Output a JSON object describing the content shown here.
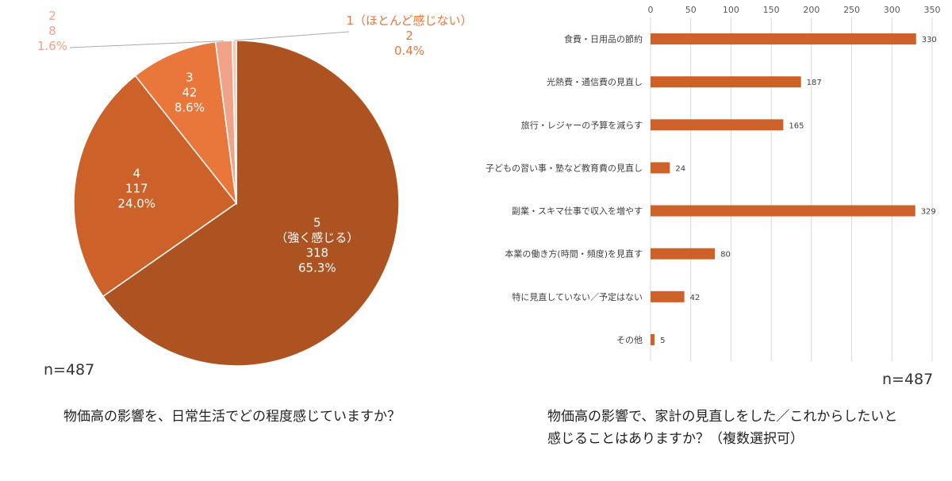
{
  "chart_data": [
    {
      "type": "pie",
      "title": "物価高の影響を、日常生活でどの程度感じていますか？",
      "note": "n=487",
      "slices": [
        {
          "name": "5",
          "sublabel": "（強く感じる）",
          "value": 318,
          "percent": "65.3%",
          "color": "#ad5322"
        },
        {
          "name": "4",
          "sublabel": "",
          "value": 117,
          "percent": "24.0%",
          "color": "#cc6129"
        },
        {
          "name": "3",
          "sublabel": "",
          "value": 42,
          "percent": "8.6%",
          "color": "#e9763a"
        },
        {
          "name": "2",
          "sublabel": "",
          "value": 8,
          "percent": "1.6%",
          "color": "#f1a38a"
        },
        {
          "name": "1（ほとんど感じない）",
          "sublabel": "",
          "value": 2,
          "percent": "0.4%",
          "color": "#f6c9b8"
        }
      ]
    },
    {
      "type": "bar",
      "orientation": "horizontal",
      "title": "物価高の影響で、家計の見直しをした／これからしたいと感じることはありますか？（複数選択可）",
      "title_lines": [
        "物価高の影響で、家計の見直しをした／これからしたいと",
        "感じることはありますか？（複数選択可）"
      ],
      "note": "n=487",
      "categories": [
        "食費・日用品の節約",
        "光熱費・通信費の見直し",
        "旅行・レジャーの予算を減らす",
        "子どもの習い事・塾など教育費の見直し",
        "副業・スキマ仕事で収入を増やす",
        "本業の働き方(時間・頻度)を見直す",
        "特に見直していない／予定はない",
        "その他"
      ],
      "values": [
        330,
        187,
        165,
        24,
        329,
        80,
        42,
        5
      ],
      "xlim": [
        0,
        350
      ],
      "xticks": [
        0,
        50,
        100,
        150,
        200,
        250,
        300,
        350
      ],
      "grid": true,
      "bar_color": "#cc6129"
    }
  ]
}
